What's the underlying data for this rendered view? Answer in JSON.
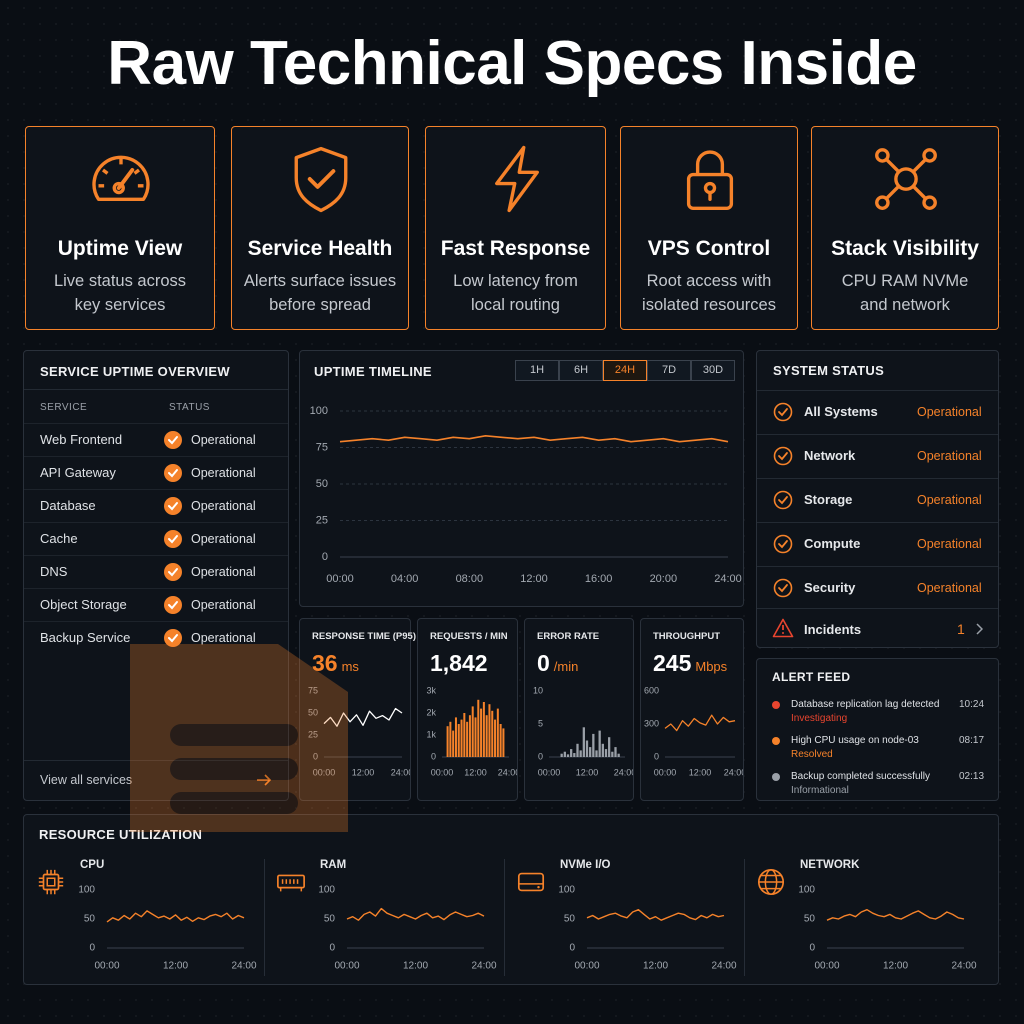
{
  "title": "Raw Technical Specs Inside",
  "features": [
    {
      "title": "Uptime View",
      "description": [
        "Live status across",
        "key services"
      ]
    },
    {
      "title": "Service Health",
      "description": [
        "Alerts surface issues",
        "before spread"
      ]
    },
    {
      "title": "Fast Response",
      "description": [
        "Low latency from",
        "local routing"
      ]
    },
    {
      "title": "VPS Control",
      "description": [
        "Root access with",
        "isolated resources"
      ]
    },
    {
      "title": "Stack Visibility",
      "description": [
        "CPU RAM NVMe",
        "and network"
      ]
    }
  ],
  "service_uptime": {
    "title": "SERVICE UPTIME OVERVIEW",
    "columns": [
      "SERVICE",
      "STATUS"
    ],
    "rows": [
      {
        "name": "Web Frontend",
        "status": "Operational"
      },
      {
        "name": "API Gateway",
        "status": "Operational"
      },
      {
        "name": "Database",
        "status": "Operational"
      },
      {
        "name": "Cache",
        "status": "Operational"
      },
      {
        "name": "DNS",
        "status": "Operational"
      },
      {
        "name": "Object Storage",
        "status": "Operational"
      },
      {
        "name": "Backup Service",
        "status": "Operational"
      }
    ],
    "footer": "View all services"
  },
  "uptime_timeline": {
    "title": "UPTIME TIMELINE",
    "ranges": [
      "1H",
      "6H",
      "24H",
      "7D",
      "30D"
    ],
    "selected_range": "24H",
    "chart": {
      "type": "line",
      "color": "#f5822a",
      "grid": true,
      "x": [
        0,
        1,
        2,
        3,
        4,
        5,
        6,
        7,
        8,
        9,
        10,
        11,
        12,
        13,
        14,
        15,
        16,
        17,
        18,
        19,
        20,
        21,
        22,
        23,
        24
      ],
      "values": [
        79,
        80,
        81,
        80,
        82,
        81,
        80,
        82,
        81,
        83,
        82,
        81,
        82,
        80,
        81,
        82,
        80,
        81,
        79,
        80,
        81,
        79,
        80,
        81,
        79
      ],
      "xlim": [
        0,
        24
      ],
      "xticks": [
        {
          "value": 0,
          "label": "00:00"
        },
        {
          "value": 4,
          "label": "04:00"
        },
        {
          "value": 8,
          "label": "08:00"
        },
        {
          "value": 12,
          "label": "12:00"
        },
        {
          "value": 16,
          "label": "16:00"
        },
        {
          "value": 20,
          "label": "20:00"
        },
        {
          "value": 24,
          "label": "24:00"
        }
      ],
      "ylim": [
        0,
        100
      ],
      "yticks": [
        0,
        25,
        50,
        75,
        100
      ]
    }
  },
  "metrics": [
    {
      "title": "RESPONSE TIME (P95)",
      "value": 36,
      "unit": "ms",
      "value_color": "#f5822a",
      "chart": {
        "type": "line",
        "color": "#ffffff",
        "grid": false,
        "x": [
          0,
          2,
          4,
          6,
          8,
          10,
          12,
          14,
          16,
          18,
          20,
          22,
          24
        ],
        "values": [
          38,
          45,
          35,
          50,
          40,
          48,
          36,
          52,
          44,
          47,
          42,
          55,
          50
        ],
        "xlim": [
          0,
          24
        ],
        "xticks": [
          {
            "value": 0,
            "label": "00:00"
          },
          {
            "value": 12,
            "label": "12:00"
          },
          {
            "value": 24,
            "label": "24:00"
          }
        ],
        "ylim": [
          0,
          75
        ],
        "yticks": [
          0,
          25,
          50,
          75
        ]
      }
    },
    {
      "title": "REQUESTS / MIN",
      "value": 1842,
      "value_label": "1,842",
      "value_color": "#ffffff",
      "chart": {
        "type": "bar",
        "color": "#f5822a",
        "grid": false,
        "x": [
          2,
          3,
          4,
          5,
          6,
          7,
          8,
          9,
          10,
          11,
          12,
          13,
          14,
          15,
          16,
          17,
          18,
          19,
          20,
          21,
          22
        ],
        "values": [
          1400,
          1600,
          1200,
          1800,
          1500,
          1700,
          2000,
          1600,
          1900,
          2300,
          1800,
          2600,
          2200,
          2500,
          1900,
          2400,
          2100,
          1700,
          2200,
          1500,
          1300
        ],
        "xlim": [
          0,
          24
        ],
        "xticks": [
          {
            "value": 0,
            "label": "00:00"
          },
          {
            "value": 12,
            "label": "12:00"
          },
          {
            "value": 24,
            "label": "24:00"
          }
        ],
        "ylim": [
          0,
          3000
        ],
        "yticks": [
          0,
          {
            "value": 1000,
            "label": "1k"
          },
          {
            "value": 2000,
            "label": "2k"
          },
          {
            "value": 3000,
            "label": "3k"
          }
        ]
      }
    },
    {
      "title": "ERROR RATE",
      "value": 0,
      "unit": "/min",
      "value_color": "#ffffff",
      "chart": {
        "type": "bar",
        "color": "#9aa0a8",
        "grid": false,
        "x": [
          4,
          5,
          6,
          7,
          8,
          9,
          10,
          11,
          12,
          13,
          14,
          15,
          16,
          17,
          18,
          19,
          20,
          21,
          22
        ],
        "values": [
          0.5,
          0.8,
          0.4,
          1.2,
          0.6,
          2.0,
          1.0,
          4.5,
          2.5,
          1.5,
          3.5,
          1.0,
          4.0,
          2.0,
          1.2,
          3.0,
          0.8,
          1.5,
          0.5
        ],
        "xlim": [
          0,
          24
        ],
        "xticks": [
          {
            "value": 0,
            "label": "00:00"
          },
          {
            "value": 12,
            "label": "12:00"
          },
          {
            "value": 24,
            "label": "24:00"
          }
        ],
        "ylim": [
          0,
          10
        ],
        "yticks": [
          0,
          5,
          10
        ]
      }
    },
    {
      "title": "THROUGHPUT",
      "value": 245,
      "unit": "Mbps",
      "value_color": "#ffffff",
      "chart": {
        "type": "line",
        "color": "#f5822a",
        "grid": false,
        "x": [
          0,
          2,
          4,
          6,
          8,
          10,
          12,
          14,
          16,
          18,
          20,
          22,
          24
        ],
        "values": [
          260,
          300,
          240,
          330,
          280,
          350,
          310,
          290,
          380,
          300,
          360,
          320,
          330
        ],
        "xlim": [
          0,
          24
        ],
        "xticks": [
          {
            "value": 0,
            "label": "00:00"
          },
          {
            "value": 12,
            "label": "12:00"
          },
          {
            "value": 24,
            "label": "24:00"
          }
        ],
        "ylim": [
          0,
          600
        ],
        "yticks": [
          0,
          300,
          600
        ]
      }
    }
  ],
  "system_status": {
    "title": "SYSTEM STATUS",
    "items": [
      {
        "name": "All Systems",
        "status": "Operational"
      },
      {
        "name": "Network",
        "status": "Operational"
      },
      {
        "name": "Storage",
        "status": "Operational"
      },
      {
        "name": "Compute",
        "status": "Operational"
      },
      {
        "name": "Security",
        "status": "Operational"
      }
    ],
    "incidents": {
      "label": "Incidents",
      "count": 1
    }
  },
  "alert_feed": {
    "title": "ALERT FEED",
    "alerts": [
      {
        "message": "Database replication lag detected",
        "status": "Investigating",
        "time": "10:24",
        "color": "#e8452f"
      },
      {
        "message": "High CPU usage on node-03",
        "status": "Resolved",
        "time": "08:17",
        "color": "#f5822a"
      },
      {
        "message": "Backup completed successfully",
        "status": "Informational",
        "time": "02:13",
        "color": "#9aa0a8"
      }
    ]
  },
  "resources": {
    "title": "RESOURCE UTILIZATION",
    "items": [
      {
        "name": "CPU",
        "chart": {
          "type": "line",
          "color": "#f5822a",
          "grid": false,
          "x": [
            0,
            1,
            2,
            3,
            4,
            5,
            6,
            7,
            8,
            9,
            10,
            11,
            12,
            13,
            14,
            15,
            16,
            17,
            18,
            19,
            20,
            21,
            22,
            23,
            24
          ],
          "values": [
            45,
            52,
            48,
            56,
            50,
            60,
            54,
            64,
            58,
            52,
            55,
            50,
            57,
            48,
            53,
            46,
            52,
            49,
            55,
            58,
            54,
            60,
            50,
            56,
            52
          ],
          "xlim": [
            0,
            24
          ],
          "xticks": [
            {
              "value": 0,
              "label": "00:00"
            },
            {
              "value": 12,
              "label": "12:00"
            },
            {
              "value": 24,
              "label": "24:00"
            }
          ],
          "ylim": [
            0,
            100
          ],
          "yticks": [
            0,
            50,
            100
          ]
        }
      },
      {
        "name": "RAM",
        "chart": {
          "type": "line",
          "color": "#f5822a",
          "grid": false,
          "x": [
            0,
            1,
            2,
            3,
            4,
            5,
            6,
            7,
            8,
            9,
            10,
            11,
            12,
            13,
            14,
            15,
            16,
            17,
            18,
            19,
            20,
            21,
            22,
            23,
            24
          ],
          "values": [
            50,
            54,
            48,
            58,
            62,
            55,
            68,
            60,
            56,
            52,
            58,
            54,
            50,
            56,
            60,
            52,
            55,
            49,
            57,
            62,
            58,
            54,
            56,
            60,
            55
          ],
          "xlim": [
            0,
            24
          ],
          "xticks": [
            {
              "value": 0,
              "label": "00:00"
            },
            {
              "value": 12,
              "label": "12:00"
            },
            {
              "value": 24,
              "label": "24:00"
            }
          ],
          "ylim": [
            0,
            100
          ],
          "yticks": [
            0,
            50,
            100
          ]
        }
      },
      {
        "name": "NVMe I/O",
        "chart": {
          "type": "line",
          "color": "#f5822a",
          "grid": false,
          "x": [
            0,
            1,
            2,
            3,
            4,
            5,
            6,
            7,
            8,
            9,
            10,
            11,
            12,
            13,
            14,
            15,
            16,
            17,
            18,
            19,
            20,
            21,
            22,
            23,
            24
          ],
          "values": [
            52,
            56,
            50,
            54,
            58,
            60,
            55,
            52,
            62,
            66,
            58,
            50,
            54,
            48,
            52,
            56,
            60,
            58,
            52,
            49,
            56,
            52,
            58,
            54,
            56
          ],
          "xlim": [
            0,
            24
          ],
          "xticks": [
            {
              "value": 0,
              "label": "00:00"
            },
            {
              "value": 12,
              "label": "12:00"
            },
            {
              "value": 24,
              "label": "24:00"
            }
          ],
          "ylim": [
            0,
            100
          ],
          "yticks": [
            0,
            50,
            100
          ]
        }
      },
      {
        "name": "NETWORK",
        "chart": {
          "type": "line",
          "color": "#f5822a",
          "grid": false,
          "x": [
            0,
            1,
            2,
            3,
            4,
            5,
            6,
            7,
            8,
            9,
            10,
            11,
            12,
            13,
            14,
            15,
            16,
            17,
            18,
            19,
            20,
            21,
            22,
            23,
            24
          ],
          "values": [
            48,
            52,
            50,
            55,
            58,
            54,
            62,
            66,
            60,
            56,
            54,
            58,
            52,
            50,
            55,
            60,
            64,
            58,
            52,
            50,
            55,
            62,
            58,
            52,
            50
          ],
          "xlim": [
            0,
            24
          ],
          "xticks": [
            {
              "value": 0,
              "label": "00:00"
            },
            {
              "value": 12,
              "label": "12:00"
            },
            {
              "value": 24,
              "label": "24:00"
            }
          ],
          "ylim": [
            0,
            100
          ],
          "yticks": [
            0,
            50,
            100
          ]
        }
      }
    ]
  }
}
